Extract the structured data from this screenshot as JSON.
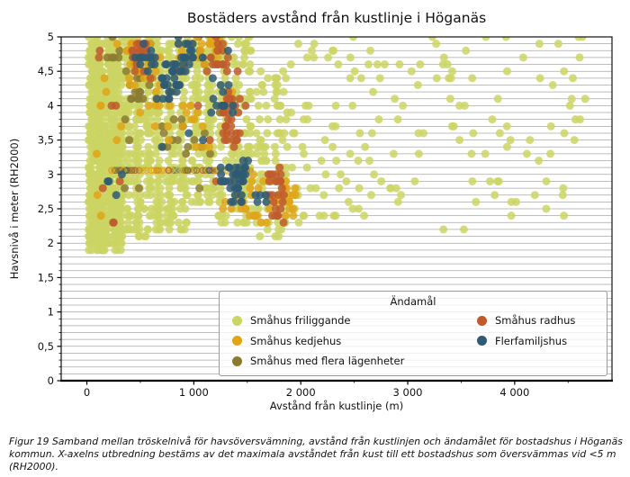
{
  "figure": {
    "caption": "Figur 19 Samband mellan tröskelnivå för havsöversvämning, avstånd från kustlinjen och ändamålet för bostadshus i Höganäs kommun. X-axelns utbredning bestäms av det maximala avståndet från kust till ett bostadshus som översvämmas vid <5 m (RH2000)."
  },
  "chart_data": {
    "type": "scatter",
    "title": "Bostäders avstånd från kustlinje i Höganäs",
    "xlabel": "Avstånd från kustlinje (m)",
    "ylabel": "Havsnivå i meter (RH2000)",
    "xlim": [
      -240,
      4910
    ],
    "ylim": [
      0,
      5
    ],
    "x_ticks": {
      "values": [
        0,
        1000,
        2000,
        3000,
        4000
      ],
      "labels": [
        "0",
        "1 000",
        "2 000",
        "3 000",
        "4 000"
      ],
      "minor_values": [
        500,
        1500,
        2500,
        3500,
        4500
      ]
    },
    "y_ticks": {
      "values": [
        0,
        0.5,
        1,
        1.5,
        2,
        2.5,
        3,
        3.5,
        4,
        4.5,
        5
      ],
      "labels": [
        "0",
        "0,5",
        "1",
        "1,5",
        "2",
        "2,5",
        "3",
        "3,5",
        "4",
        "4,5",
        "5"
      ],
      "minor_step": 0.1
    },
    "grid": {
      "horizontal_step": 0.1,
      "vertical": false,
      "color": "#a8a8a8"
    },
    "legend": {
      "title": "Ändamål",
      "position": "lower right",
      "columns": 2
    },
    "series": [
      {
        "key": "friliggande",
        "label": "Småhus friliggande",
        "color": "#cbd564"
      },
      {
        "key": "kedjehus",
        "label": "Småhus kedjehus",
        "color": "#e0a417"
      },
      {
        "key": "flera",
        "label": "Småhus med flera lägenheter",
        "color": "#8b7b31"
      },
      {
        "key": "radhus",
        "label": "Småhus radhus",
        "color": "#c05a2b"
      },
      {
        "key": "flerfamilj",
        "label": "Flerfamiljshus",
        "color": "#2e5a74"
      }
    ],
    "y_quantization": 0.1,
    "marker_radius_px": 4.5,
    "clusters": [
      {
        "series": "friliggande",
        "x": [
          15,
          120
        ],
        "y": [
          1.9,
          5.0
        ],
        "n": 300
      },
      {
        "series": "friliggande",
        "x": [
          110,
          340
        ],
        "y": [
          1.9,
          5.0
        ],
        "n": 520
      },
      {
        "series": "friliggande",
        "x": [
          340,
          520
        ],
        "y": [
          2.1,
          5.0
        ],
        "n": 150,
        "cols": 2
      },
      {
        "series": "friliggande",
        "x": [
          520,
          720
        ],
        "y": [
          2.1,
          5.0
        ],
        "n": 150,
        "cols": 2
      },
      {
        "series": "friliggande",
        "x": [
          720,
          960
        ],
        "y": [
          2.2,
          5.0
        ],
        "n": 150,
        "cols": 2
      },
      {
        "series": "friliggande",
        "x": [
          960,
          1210
        ],
        "y": [
          2.6,
          5.0
        ],
        "n": 130,
        "cols": 2
      },
      {
        "series": "friliggande",
        "x": [
          1210,
          1560
        ],
        "y": [
          2.3,
          5.0
        ],
        "n": 150,
        "cols": 3
      },
      {
        "series": "friliggande",
        "x": [
          1560,
          1900
        ],
        "y": [
          2.05,
          4.5
        ],
        "n": 90,
        "cols": 2
      },
      {
        "series": "friliggande",
        "x": [
          1900,
          2650
        ],
        "y": [
          2.3,
          5.0
        ],
        "n": 60
      },
      {
        "series": "friliggande",
        "x": [
          2650,
          3650
        ],
        "y": [
          2.55,
          5.0
        ],
        "n": 48
      },
      {
        "series": "friliggande",
        "x": [
          3650,
          4740
        ],
        "y": [
          2.6,
          5.0
        ],
        "n": 42
      },
      {
        "series": "friliggande",
        "x": [
          1950,
          4700
        ],
        "y": [
          2.1,
          2.55
        ],
        "n": 8
      },
      {
        "series": "flera",
        "x": [
          350,
          650
        ],
        "y": [
          4.1,
          5.0
        ],
        "n": 26
      },
      {
        "series": "flera",
        "x": [
          700,
          950
        ],
        "y": [
          3.3,
          3.8
        ],
        "n": 12
      },
      {
        "series": "flera",
        "x": [
          1000,
          1250
        ],
        "y": [
          4.5,
          5.0
        ],
        "n": 9
      },
      {
        "series": "flera",
        "x": [
          150,
          340
        ],
        "y": [
          4.6,
          5.0
        ],
        "n": 6
      },
      {
        "series": "flera",
        "x": [
          300,
          1400
        ],
        "y": [
          2.8,
          4.6
        ],
        "n": 12
      },
      {
        "series": "kedjehus",
        "x": [
          350,
          700
        ],
        "y": [
          4.3,
          5.0
        ],
        "n": 20
      },
      {
        "series": "kedjehus",
        "x": [
          850,
          1250
        ],
        "y": [
          4.55,
          5.0
        ],
        "n": 26
      },
      {
        "series": "kedjehus",
        "x": [
          560,
          820
        ],
        "y": [
          3.6,
          4.2
        ],
        "n": 9
      },
      {
        "series": "kedjehus",
        "x": [
          900,
          1150
        ],
        "y": [
          3.4,
          4.0
        ],
        "n": 10
      },
      {
        "series": "kedjehus",
        "x": [
          1480,
          1950
        ],
        "y": [
          2.3,
          3.0
        ],
        "n": 40
      },
      {
        "series": "kedjehus",
        "x": [
          1250,
          1480
        ],
        "y": [
          2.4,
          2.9
        ],
        "n": 10
      },
      {
        "series": "kedjehus",
        "x": [
          60,
          340
        ],
        "y": [
          2.2,
          4.9
        ],
        "n": 10
      },
      {
        "series": "kedjehus",
        "x": [
          400,
          1450
        ],
        "y": [
          3.0,
          4.5
        ],
        "n": 12
      },
      {
        "series": "__row__",
        "x": [
          225,
          1540
        ],
        "y": [
          3.06,
          3.06
        ],
        "n": 115,
        "r": 3.2
      },
      {
        "series": "radhus",
        "x": [
          420,
          570
        ],
        "y": [
          4.4,
          5.0
        ],
        "n": 16
      },
      {
        "series": "radhus",
        "x": [
          1270,
          1430
        ],
        "y": [
          3.3,
          4.2
        ],
        "n": 28
      },
      {
        "series": "radhus",
        "x": [
          1690,
          1850
        ],
        "y": [
          2.3,
          3.2
        ],
        "n": 24
      },
      {
        "series": "radhus",
        "x": [
          1150,
          1350
        ],
        "y": [
          4.35,
          5.0
        ],
        "n": 12
      },
      {
        "series": "radhus",
        "x": [
          60,
          340
        ],
        "y": [
          2.0,
          4.8
        ],
        "n": 8
      },
      {
        "series": "radhus",
        "x": [
          350,
          1650
        ],
        "y": [
          2.8,
          4.9
        ],
        "n": 14
      },
      {
        "series": "flerfamilj",
        "x": [
          700,
          900
        ],
        "y": [
          4.1,
          4.65
        ],
        "n": 26
      },
      {
        "series": "flerfamilj",
        "x": [
          850,
          1000
        ],
        "y": [
          4.5,
          5.0
        ],
        "n": 16
      },
      {
        "series": "flerfamilj",
        "x": [
          1250,
          1520
        ],
        "y": [
          2.85,
          3.2
        ],
        "n": 26
      },
      {
        "series": "flerfamilj",
        "x": [
          1320,
          1460
        ],
        "y": [
          2.55,
          2.8
        ],
        "n": 10
      },
      {
        "series": "flerfamilj",
        "x": [
          400,
          700
        ],
        "y": [
          4.5,
          5.0
        ],
        "n": 12
      },
      {
        "series": "flerfamilj",
        "x": [
          1150,
          1300
        ],
        "y": [
          3.9,
          4.4
        ],
        "n": 10
      },
      {
        "series": "flerfamilj",
        "x": [
          420,
          1500
        ],
        "y": [
          3.3,
          4.9
        ],
        "n": 10
      },
      {
        "series": "flerfamilj",
        "x": [
          1550,
          1700
        ],
        "y": [
          2.6,
          2.8
        ],
        "n": 5
      },
      {
        "series": "flerfamilj",
        "x": [
          150,
          400
        ],
        "y": [
          2.6,
          3.1
        ],
        "n": 4
      }
    ],
    "row_color_mix": [
      "flera",
      "flera",
      "kedjehus",
      "friliggande",
      "kedjehus",
      "flera",
      "radhus",
      "friliggande",
      "kedjehus",
      "flerfamilj"
    ]
  }
}
